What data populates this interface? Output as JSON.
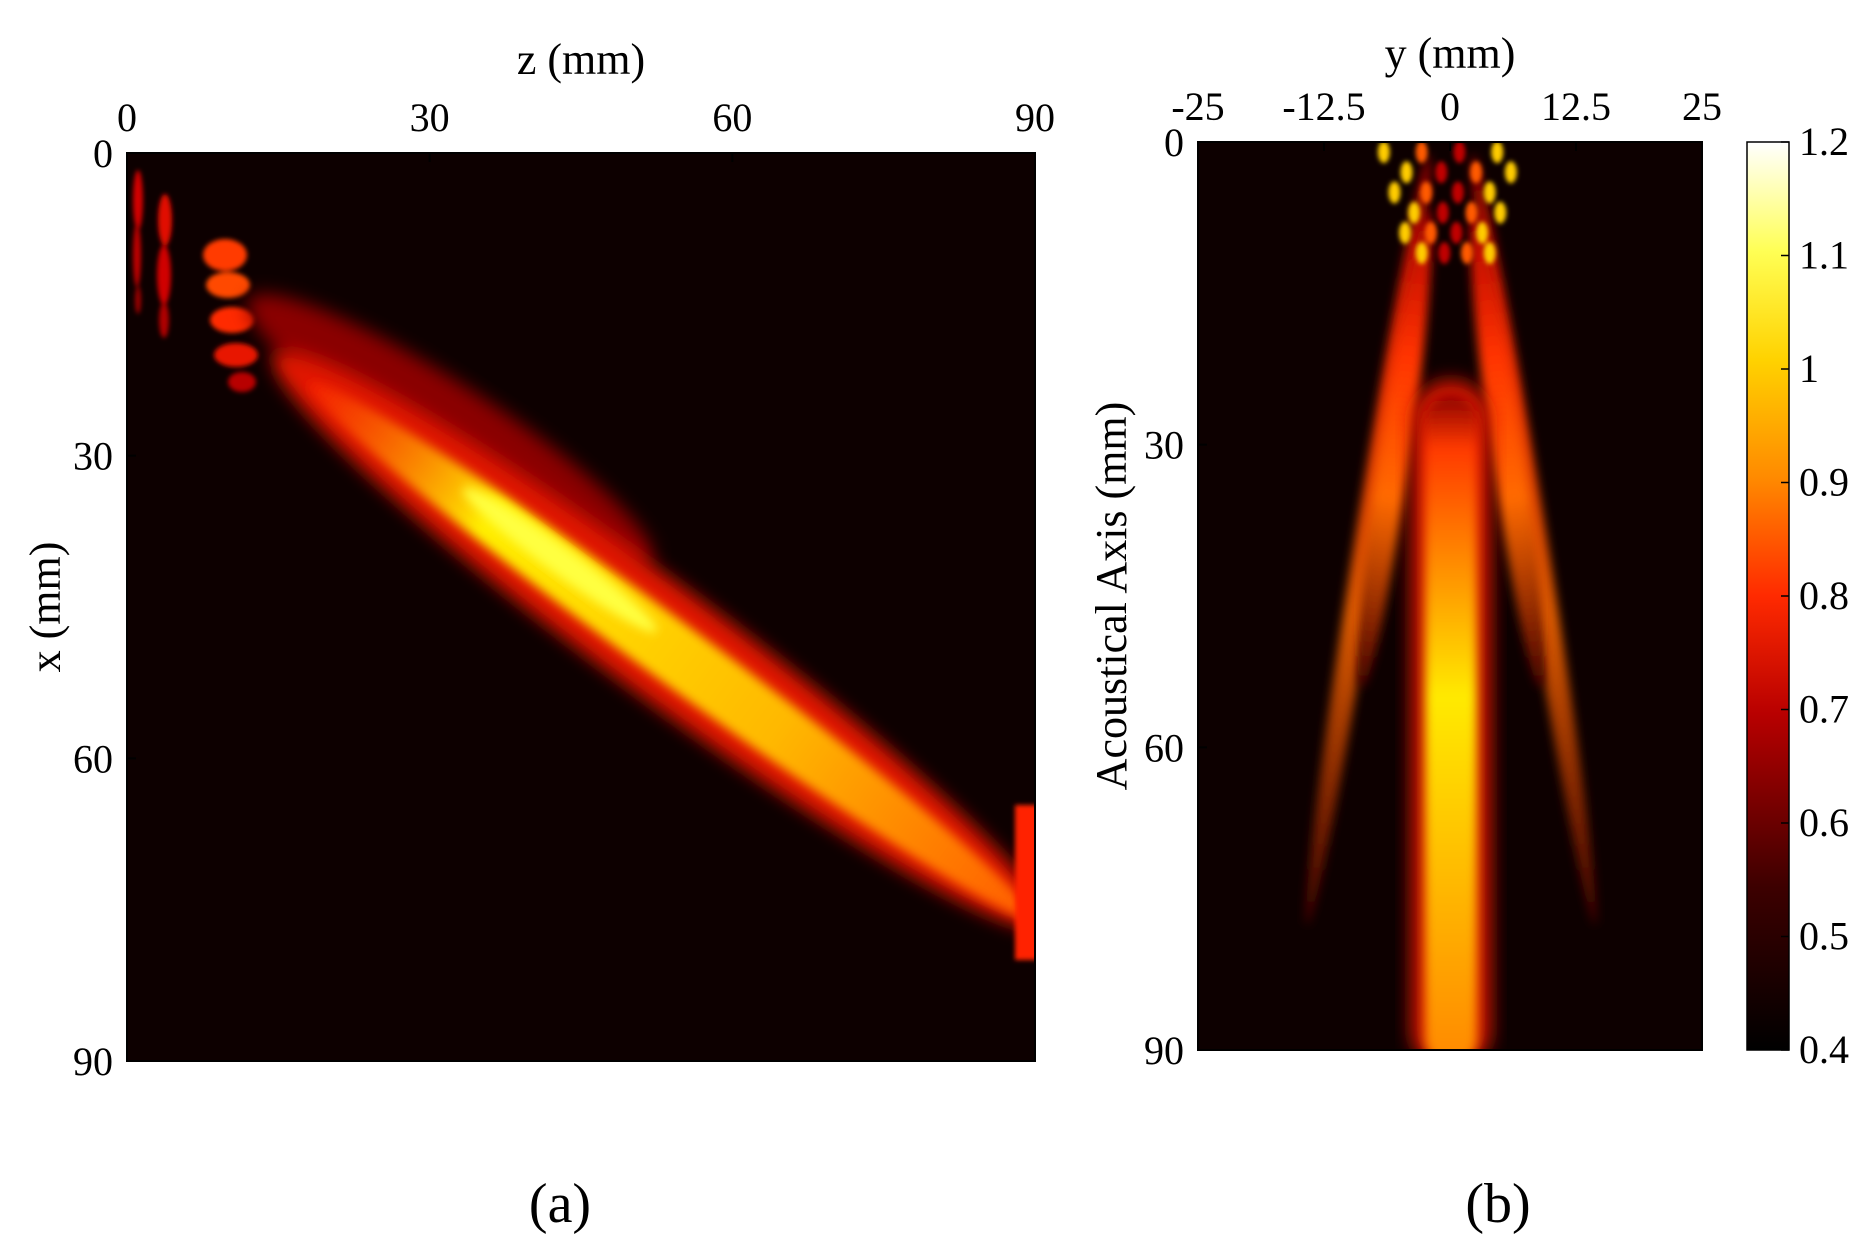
{
  "figure": {
    "panel_a_label": "(a)",
    "panel_b_label": "(b)"
  },
  "chart_data": [
    {
      "type": "heatmap",
      "panel": "a",
      "xlabel": "z (mm)",
      "ylabel": "x (mm)",
      "x_axis_position": "top",
      "xlim": [
        0,
        90
      ],
      "ylim": [
        0,
        90
      ],
      "y_inverted": true,
      "xticks": [
        0,
        30,
        60,
        90
      ],
      "yticks": [
        0,
        30,
        60,
        90
      ],
      "colormap": "hot",
      "grid": false,
      "features": [
        {
          "name": "near-field lobes",
          "z_range": [
            0,
            14
          ],
          "x_range": [
            2,
            23
          ],
          "peak": 0.7
        },
        {
          "name": "steered main beam",
          "start": [
            21,
            21
          ],
          "focus": [
            42,
            40
          ],
          "end": [
            90,
            79
          ],
          "peak": 1.05
        }
      ]
    },
    {
      "type": "heatmap",
      "panel": "b",
      "xlabel": "y (mm)",
      "ylabel": "Acoustical Axis (mm)",
      "x_axis_position": "top",
      "xlim": [
        -25,
        25
      ],
      "ylim": [
        0,
        90
      ],
      "y_inverted": true,
      "xticks": [
        -25,
        -12.5,
        0,
        12.5,
        25
      ],
      "xtick_labels": [
        "-25",
        "-12.5",
        "0",
        "12.5",
        "25"
      ],
      "yticks": [
        0,
        30,
        60,
        90
      ],
      "colormap": "hot",
      "grid": false,
      "colorbar": {
        "min": 0.4,
        "max": 1.2,
        "position": "right",
        "ticks": [
          1.2,
          1.1,
          1,
          0.9,
          0.8,
          0.7,
          0.6,
          0.5,
          0.4
        ],
        "tick_labels": [
          "1.2",
          "1.1",
          "1",
          "0.9",
          "0.8",
          "0.7",
          "0.6",
          "0.5",
          "0.4"
        ]
      },
      "features": [
        {
          "name": "central beam",
          "y_center": 0,
          "axis_range": [
            25,
            90
          ],
          "peak": 1.0
        },
        {
          "name": "inner side lobe left",
          "y_center": -5,
          "axis_range": [
            19,
            65
          ]
        },
        {
          "name": "inner side lobe right",
          "y_center": 5,
          "axis_range": [
            19,
            65
          ]
        },
        {
          "name": "outer side lobe left",
          "y_center": -9,
          "axis_range": [
            12,
            82
          ]
        },
        {
          "name": "outer side lobe right",
          "y_center": 9,
          "axis_range": [
            12,
            82
          ]
        },
        {
          "name": "near-field interference",
          "y_range": [
            -7.5,
            7.5
          ],
          "axis_range": [
            0,
            12
          ],
          "peak": 1.1
        }
      ]
    }
  ]
}
